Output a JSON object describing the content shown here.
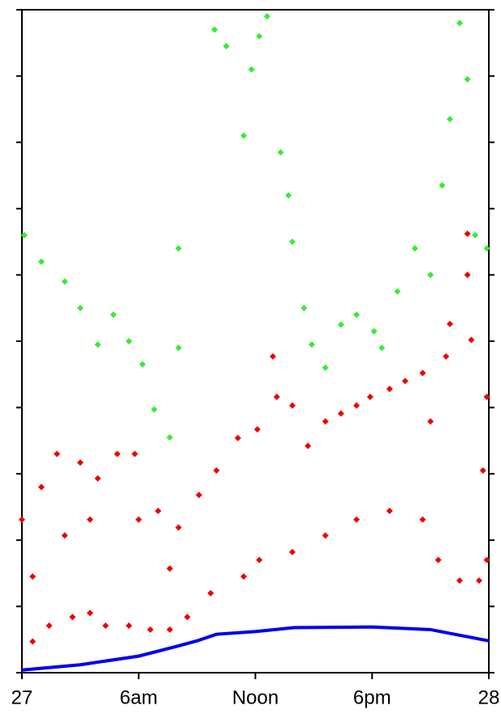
{
  "chart_data": {
    "type": "scatter",
    "xlim": [
      0,
      24
    ],
    "xticks": [
      {
        "value": 0,
        "label": "27"
      },
      {
        "value": 6,
        "label": "6am"
      },
      {
        "value": 12,
        "label": "Noon"
      },
      {
        "value": 18,
        "label": "6pm"
      },
      {
        "value": 24,
        "label": "28"
      }
    ],
    "ylim": [
      0,
      10
    ],
    "yticks": [
      0,
      1,
      2,
      3,
      4,
      5,
      6,
      7,
      8,
      9,
      10
    ],
    "series": [
      {
        "color": "#33ee33",
        "style": "markers",
        "x": [
          0.12,
          1,
          2.2,
          3,
          3.9,
          4.7,
          5.5,
          6.2,
          6.8,
          7.6,
          8.05,
          8.05,
          9.9,
          10.5,
          11.4,
          11.8,
          12.2,
          12.6,
          13.3,
          13.7,
          13.9,
          14.5,
          14.9,
          15.6,
          16.4,
          17.2,
          18.1,
          18.5,
          19.3,
          20.2,
          21,
          21.6,
          22,
          22.5,
          22.9,
          23.3,
          23.9
        ],
        "values": [
          6.6,
          6.2,
          5.9,
          5.5,
          4.95,
          5.4,
          5.0,
          4.65,
          3.97,
          3.55,
          6.4,
          4.9,
          9.7,
          9.45,
          8.1,
          9.1,
          9.6,
          9.9,
          7.85,
          7.2,
          6.5,
          5.5,
          4.95,
          4.6,
          5.25,
          5.4,
          5.15,
          4.9,
          5.75,
          6.4,
          6.0,
          7.35,
          8.35,
          9.8,
          8.95,
          6.6,
          6.4
        ]
      },
      {
        "color": "#ee0000",
        "style": "markers",
        "x": [
          0.55,
          1.4,
          2.6,
          3.5,
          4.3,
          5.5,
          6.6,
          7.6,
          8.5,
          9.7,
          11.4,
          12.2,
          13.9,
          15.6,
          17.2,
          18.9,
          20.6,
          21.4,
          22.5,
          23.5,
          23.9,
          0,
          0.55,
          1,
          1.8,
          2.2,
          3,
          3.5,
          3.9,
          4.9,
          5.8,
          6,
          7,
          7.6,
          8.05,
          9.1,
          10,
          11.1,
          12.1,
          12.9,
          13.1,
          13.9,
          14.7,
          15.6,
          16.4,
          17.2,
          17.9,
          18.9,
          19.7,
          20.6,
          21,
          21.8,
          22,
          22.9,
          22.9,
          23.1,
          23.9,
          23.7
        ],
        "values": [
          0.47,
          0.71,
          0.84,
          0.9,
          0.71,
          0.71,
          0.65,
          0.65,
          0.84,
          1.2,
          1.45,
          1.7,
          1.82,
          2.07,
          2.31,
          2.44,
          2.31,
          1.7,
          1.39,
          1.39,
          1.7,
          2.31,
          1.45,
          2.8,
          3.3,
          2.07,
          3.17,
          2.31,
          2.93,
          3.3,
          3.3,
          2.31,
          2.44,
          1.57,
          2.19,
          2.68,
          3.05,
          3.54,
          3.67,
          4.77,
          4.16,
          4.03,
          3.42,
          3.79,
          3.91,
          4.03,
          4.16,
          4.28,
          4.4,
          4.52,
          3.79,
          4.77,
          5.26,
          6.62,
          6.0,
          5.02,
          4.16,
          3.05
        ]
      },
      {
        "color": "#0000ee",
        "style": "line",
        "x": [
          0,
          3,
          6,
          8,
          9,
          10,
          12,
          14,
          18,
          21,
          24
        ],
        "values": [
          0.04,
          0.12,
          0.25,
          0.4,
          0.48,
          0.58,
          0.62,
          0.68,
          0.69,
          0.65,
          0.48
        ]
      }
    ]
  }
}
